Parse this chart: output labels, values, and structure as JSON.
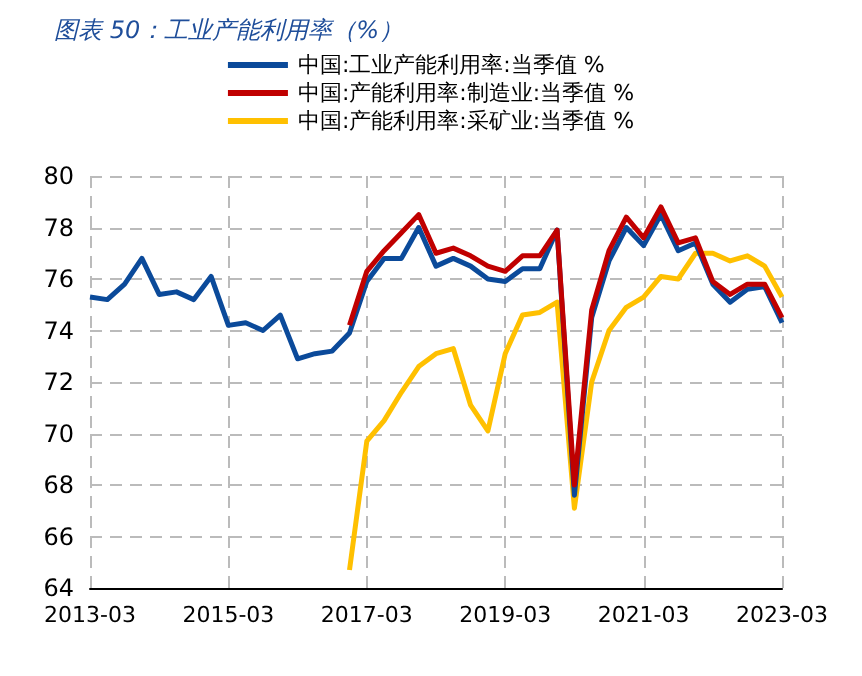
{
  "chart_data": {
    "type": "line",
    "title": "图表 50：工业产能利用率（%）",
    "categories": [
      "2013-03",
      null,
      null,
      null,
      null,
      null,
      null,
      null,
      "2015-03",
      null,
      null,
      null,
      null,
      null,
      null,
      null,
      "2017-03",
      null,
      null,
      null,
      null,
      null,
      null,
      null,
      "2019-03",
      null,
      null,
      null,
      null,
      null,
      null,
      null,
      "2021-03",
      null,
      null,
      null,
      null,
      null,
      null,
      null,
      "2023-03"
    ],
    "series": [
      {
        "name": "中国:工业产能利用率:当季值 %",
        "color": "#0b4a9a",
        "values": [
          75.3,
          75.2,
          75.8,
          76.8,
          75.4,
          75.5,
          75.2,
          76.1,
          74.2,
          74.3,
          74.0,
          74.6,
          72.9,
          73.1,
          73.2,
          73.9,
          75.9,
          76.8,
          76.8,
          78.0,
          76.5,
          76.8,
          76.5,
          76.0,
          75.9,
          76.4,
          76.4,
          77.9,
          67.6,
          74.5,
          76.7,
          78.0,
          77.3,
          78.5,
          77.1,
          77.4,
          75.8,
          75.1,
          75.6,
          75.7,
          74.3
        ]
      },
      {
        "name": "中国:产能利用率:制造业:当季值 %",
        "color": "#c00000",
        "values": [
          null,
          null,
          null,
          null,
          null,
          null,
          null,
          null,
          null,
          null,
          null,
          null,
          null,
          null,
          null,
          74.2,
          76.3,
          77.1,
          77.8,
          78.5,
          77.0,
          77.2,
          76.9,
          76.5,
          76.3,
          76.9,
          76.9,
          77.9,
          68.0,
          74.8,
          77.1,
          78.4,
          77.6,
          78.8,
          77.4,
          77.6,
          75.9,
          75.4,
          75.8,
          75.8,
          74.5
        ]
      },
      {
        "name": "中国:产能利用率:采矿业:当季值 %",
        "color": "#ffc000",
        "values": [
          null,
          null,
          null,
          null,
          null,
          null,
          null,
          null,
          null,
          null,
          null,
          null,
          null,
          null,
          null,
          64.7,
          69.7,
          70.5,
          71.6,
          72.6,
          73.1,
          73.3,
          71.1,
          70.1,
          73.1,
          74.6,
          74.7,
          75.1,
          67.1,
          72.0,
          74.0,
          74.9,
          75.3,
          76.1,
          76.0,
          77.0,
          77.0,
          76.7,
          76.9,
          76.5,
          75.3
        ]
      }
    ],
    "ylim": [
      64,
      80
    ],
    "yticks": [
      64,
      66,
      68,
      70,
      72,
      74,
      76,
      78,
      80
    ],
    "grid": true,
    "legend": "top",
    "marker": "none",
    "line_style": "solid"
  }
}
